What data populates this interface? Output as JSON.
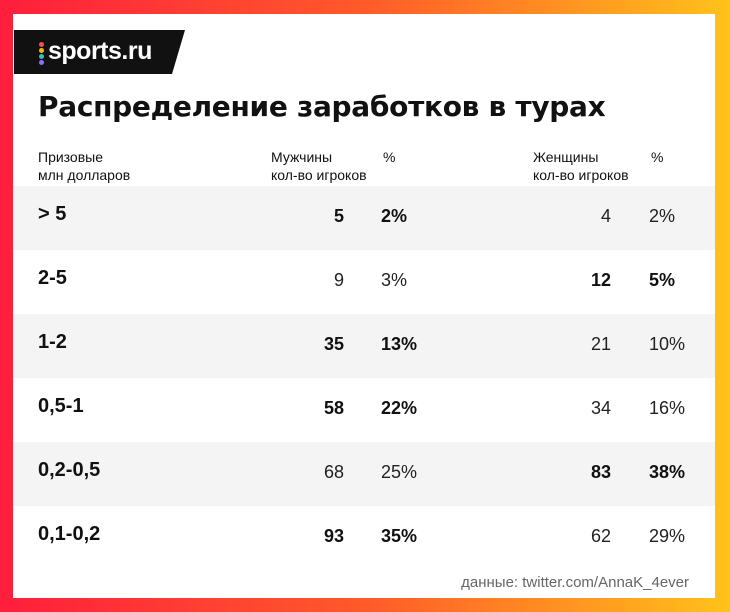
{
  "logo": {
    "text": "sports.ru",
    "dot_colors": [
      "#ff4d4d",
      "#ffb400",
      "#2ec4b6",
      "#8e6cff"
    ]
  },
  "title": "Распределение заработков в турах",
  "headers": {
    "prize": {
      "title": "Призовые",
      "subtitle": "млн долларов"
    },
    "men": {
      "title": "Мужчины",
      "subtitle": "кол-во игроков"
    },
    "men_pct": {
      "title": "%"
    },
    "women": {
      "title": "Женщины",
      "subtitle": "кол-во игроков"
    },
    "women_pct": {
      "title": "%"
    }
  },
  "source": "данные: twitter.com/AnnaK_4ever",
  "chart_data": {
    "type": "table",
    "title": "Распределение заработков в турах",
    "columns": [
      "Призовые млн долларов",
      "Мужчины кол-во игроков",
      "%",
      "Женщины кол-во игроков",
      "%"
    ],
    "rows": [
      {
        "range": "> 5",
        "men_count": "5",
        "men_pct": "2%",
        "women_count": "4",
        "women_pct": "2%",
        "men_bold": true,
        "women_bold": false
      },
      {
        "range": "2-5",
        "men_count": "9",
        "men_pct": "3%",
        "women_count": "12",
        "women_pct": "5%",
        "men_bold": false,
        "women_bold": true
      },
      {
        "range": "1-2",
        "men_count": "35",
        "men_pct": "13%",
        "women_count": "21",
        "women_pct": "10%",
        "men_bold": true,
        "women_bold": false
      },
      {
        "range": "0,5-1",
        "men_count": "58",
        "men_pct": "22%",
        "women_count": "34",
        "women_pct": "16%",
        "men_bold": true,
        "women_bold": false
      },
      {
        "range": "0,2-0,5",
        "men_count": "68",
        "men_pct": "25%",
        "women_count": "83",
        "women_pct": "38%",
        "men_bold": false,
        "women_bold": true
      },
      {
        "range": "0,1-0,2",
        "men_count": "93",
        "men_pct": "35%",
        "women_count": "62",
        "women_pct": "29%",
        "men_bold": true,
        "women_bold": false
      }
    ]
  }
}
